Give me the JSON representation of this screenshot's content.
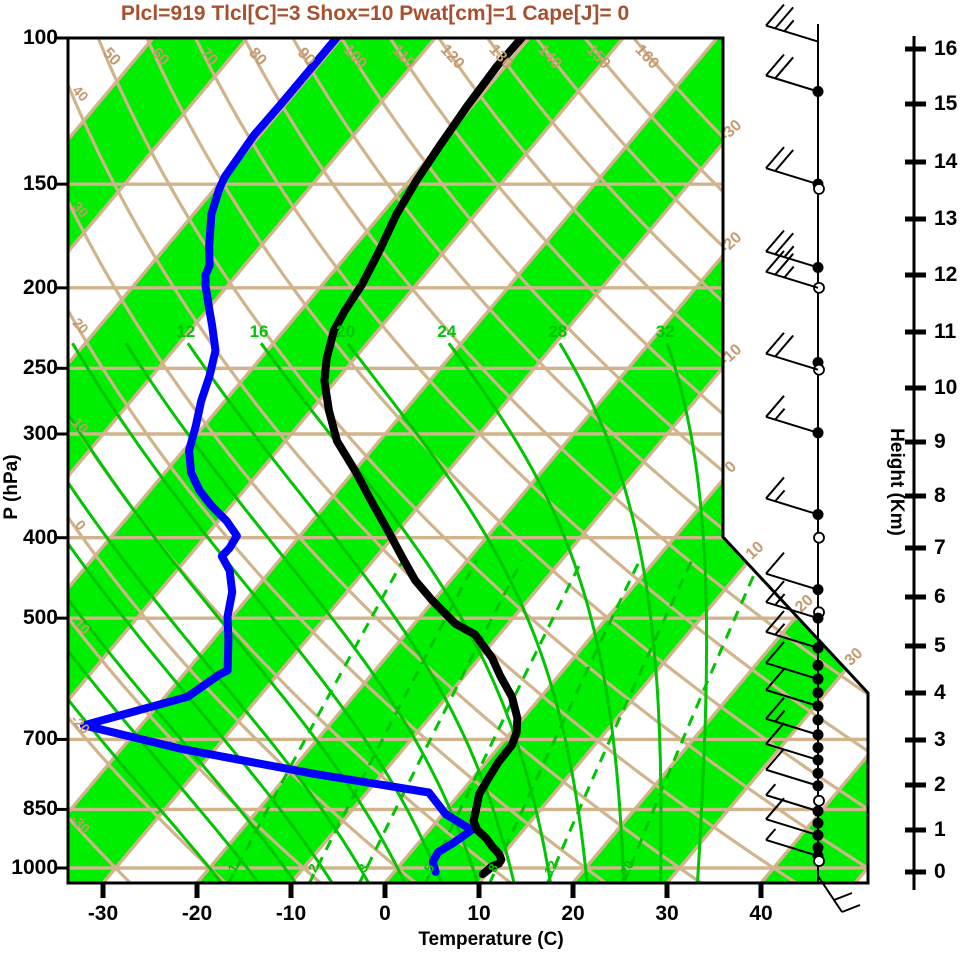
{
  "title": {
    "text": "Plcl=919 Tlcl[C]=3 Shox=10 Pwat[cm]=1 Cape[J]= 0"
  },
  "colors": {
    "band_green": "#00EE00",
    "line_green": "#00C500",
    "tan": "#D2B48C",
    "tan_label": "#C49A6E",
    "title": "#A8502E",
    "temperature_curve": "#000000",
    "dewpoint_curve": "#0000FF",
    "axis": "#000000"
  },
  "axes": {
    "pressure": {
      "label": "P (hPa)",
      "ticks": [
        100,
        150,
        200,
        250,
        300,
        400,
        500,
        700,
        850,
        1000
      ]
    },
    "temperature": {
      "label": "Temperature (C)",
      "ticks": [
        -30,
        -20,
        -10,
        0,
        10,
        20,
        30,
        40
      ]
    },
    "height": {
      "label": "Height (Km)",
      "ticks": [
        0,
        1,
        2,
        3,
        4,
        5,
        6,
        7,
        8,
        9,
        10,
        11,
        12,
        13,
        14,
        15,
        16
      ]
    }
  },
  "chart_data": {
    "type": "skewt_log_p_sounding",
    "title": "Plcl=919 Tlcl[C]=3 Shox=10 Pwat[cm]=1 Cape[J]= 0",
    "xlabel": "Temperature (C)",
    "ylabel_left": "P (hPa)",
    "ylabel_right": "Height (Km)",
    "x_surface_range_c": [
      -33.6,
      51.4
    ],
    "pressure_range_hpa": [
      1050,
      100
    ],
    "background": {
      "shaded_band_starts_c": [
        -120,
        -100,
        -80,
        -60,
        -40,
        -20,
        0,
        20,
        40
      ],
      "isotherm_lines_c": [
        -110,
        -100,
        -90,
        -80,
        -70,
        -60,
        -50,
        -40,
        -30,
        -20,
        -10,
        0,
        10,
        20,
        30,
        40,
        50
      ],
      "isotherm_edge_labels_c": [
        -30,
        -20,
        -10,
        0,
        10,
        20,
        30
      ],
      "dry_adiabats_c": [
        -30,
        -20,
        -10,
        0,
        10,
        20,
        30,
        40,
        50,
        60,
        70,
        80,
        90,
        100,
        110,
        120,
        130,
        140,
        150,
        160
      ],
      "dry_adiabat_top_labels_c": [
        50,
        60,
        70,
        80,
        90,
        100,
        110,
        120,
        130,
        140,
        150,
        160
      ],
      "dry_adiabat_left_labels_c": [
        -30,
        -20,
        -10,
        0,
        10,
        20,
        30,
        40
      ],
      "moist_adiabats_c": [
        -20,
        -16,
        -12,
        -8,
        -4,
        0,
        4,
        8,
        12,
        16,
        20,
        24,
        28,
        32
      ],
      "moist_adiabat_labels_c": [
        12,
        16,
        20,
        24,
        28,
        32
      ],
      "mixing_ratio_lines_g_kg": [
        1,
        2,
        3,
        5,
        8,
        12,
        20
      ]
    },
    "series": [
      {
        "name": "temperature",
        "color": "#000000",
        "points_p_t": [
          [
            100,
            -60.8
          ],
          [
            108,
            -60.9
          ],
          [
            121,
            -60.5
          ],
          [
            135,
            -59.9
          ],
          [
            148,
            -59.3
          ],
          [
            163,
            -58.4
          ],
          [
            180,
            -57.0
          ],
          [
            198,
            -55.8
          ],
          [
            213,
            -55.3
          ],
          [
            225,
            -54.7
          ],
          [
            243,
            -53.0
          ],
          [
            259,
            -51.2
          ],
          [
            281,
            -48.1
          ],
          [
            306,
            -44.5
          ],
          [
            333,
            -39.8
          ],
          [
            362,
            -35.4
          ],
          [
            393,
            -31.0
          ],
          [
            424,
            -27.0
          ],
          [
            450,
            -23.8
          ],
          [
            475,
            -20.3
          ],
          [
            508,
            -15.6
          ],
          [
            523,
            -12.6
          ],
          [
            558,
            -8.7
          ],
          [
            588,
            -6.1
          ],
          [
            622,
            -3.1
          ],
          [
            660,
            -0.6
          ],
          [
            687,
            0.6
          ],
          [
            711,
            1.2
          ],
          [
            747,
            1.3
          ],
          [
            782,
            1.7
          ],
          [
            815,
            2.1
          ],
          [
            849,
            3.1
          ],
          [
            878,
            3.9
          ],
          [
            900,
            5.1
          ],
          [
            921,
            6.8
          ],
          [
            943,
            8.2
          ],
          [
            961,
            9.5
          ],
          [
            977,
            10.3
          ],
          [
            988,
            10.4
          ],
          [
            995,
            9.9
          ],
          [
            1006,
            9.8
          ],
          [
            1017,
            9.6
          ]
        ]
      },
      {
        "name": "dewpoint",
        "color": "#0000FF",
        "points_p_t": [
          [
            100,
            -80.5
          ],
          [
            110,
            -80.5
          ],
          [
            120,
            -80.5
          ],
          [
            131,
            -80.6
          ],
          [
            147,
            -80.0
          ],
          [
            152,
            -79.5
          ],
          [
            163,
            -78.1
          ],
          [
            178,
            -75.5
          ],
          [
            188,
            -73.7
          ],
          [
            193,
            -73.3
          ],
          [
            199,
            -72.3
          ],
          [
            213,
            -69.7
          ],
          [
            222,
            -68.1
          ],
          [
            238,
            -65.5
          ],
          [
            255,
            -63.9
          ],
          [
            274,
            -62.5
          ],
          [
            293,
            -60.9
          ],
          [
            314,
            -59.4
          ],
          [
            334,
            -57.2
          ],
          [
            351,
            -54.7
          ],
          [
            366,
            -52.1
          ],
          [
            382,
            -49.1
          ],
          [
            398,
            -46.7
          ],
          [
            412,
            -46.4
          ],
          [
            421,
            -46.5
          ],
          [
            438,
            -44.4
          ],
          [
            465,
            -42.2
          ],
          [
            498,
            -40.5
          ],
          [
            530,
            -38.4
          ],
          [
            578,
            -35.7
          ],
          [
            585,
            -36.2
          ],
          [
            622,
            -37.6
          ],
          [
            673,
            -46.1
          ],
          [
            719,
            -33.5
          ],
          [
            770,
            -17.3
          ],
          [
            811,
            -3.4
          ],
          [
            861,
            0.3
          ],
          [
            900,
            4.5
          ],
          [
            933,
            3.7
          ],
          [
            957,
            2.9
          ],
          [
            983,
            3.2
          ],
          [
            1011,
            4.4
          ]
        ]
      }
    ],
    "wind_barbs": {
      "station_dots": [
        {
          "p": 116
        },
        {
          "p": 150
        },
        {
          "p": 152,
          "open": true
        },
        {
          "p": 189
        },
        {
          "p": 200,
          "open": true
        },
        {
          "p": 246
        },
        {
          "p": 251,
          "open": true
        },
        {
          "p": 299
        },
        {
          "p": 375
        },
        {
          "p": 400,
          "open": true
        },
        {
          "p": 462
        },
        {
          "p": 492,
          "open": true
        },
        {
          "p": 500
        },
        {
          "p": 543
        },
        {
          "p": 570
        },
        {
          "p": 592
        },
        {
          "p": 615
        },
        {
          "p": 638
        },
        {
          "p": 663
        },
        {
          "p": 691
        },
        {
          "p": 716
        },
        {
          "p": 741
        },
        {
          "p": 769
        },
        {
          "p": 796
        },
        {
          "p": 830,
          "open": true
        },
        {
          "p": 854
        },
        {
          "p": 883
        },
        {
          "p": 913
        },
        {
          "p": 945
        },
        {
          "p": 967
        },
        {
          "p": 981,
          "open": true
        }
      ],
      "barbs": [
        {
          "p": 101,
          "ticks": [
            1,
            1,
            0.5
          ]
        },
        {
          "p": 116,
          "ticks": [
            1,
            1
          ]
        },
        {
          "p": 150,
          "ticks": [
            1,
            1
          ]
        },
        {
          "p": 189,
          "ticks": [
            1,
            1,
            0.5
          ]
        },
        {
          "p": 200,
          "ticks": [
            1,
            1,
            0.5
          ]
        },
        {
          "p": 251,
          "ticks": [
            1,
            1
          ]
        },
        {
          "p": 299,
          "ticks": [
            1,
            0.5
          ]
        },
        {
          "p": 375,
          "ticks": [
            1,
            0.5
          ]
        },
        {
          "p": 462,
          "ticks": [
            1
          ]
        },
        {
          "p": 500,
          "ticks": [
            1,
            0.5
          ]
        },
        {
          "p": 543,
          "ticks": [
            1,
            0.5
          ]
        },
        {
          "p": 592,
          "ticks": [
            1
          ]
        },
        {
          "p": 638,
          "ticks": [
            1
          ]
        },
        {
          "p": 691,
          "ticks": [
            1,
            0.5
          ]
        },
        {
          "p": 741,
          "ticks": [
            1
          ]
        },
        {
          "p": 796,
          "ticks": [
            1
          ]
        },
        {
          "p": 854,
          "ticks": [
            0.5
          ]
        },
        {
          "p": 913,
          "ticks": [
            1
          ]
        },
        {
          "p": 967,
          "ticks": [
            0.5
          ]
        },
        {
          "p": 1020,
          "ticks": [
            1,
            1
          ],
          "surface": true
        }
      ]
    }
  }
}
